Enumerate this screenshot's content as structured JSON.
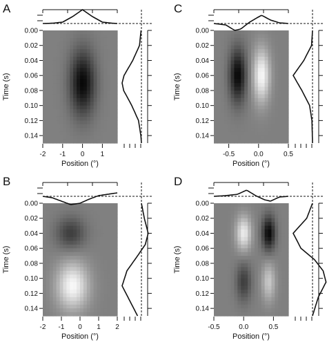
{
  "chart_data": [
    {
      "type": "heatmap",
      "panel_label": "A",
      "xlabel": "Position (°)",
      "ylabel": "Time (s)",
      "xlim": [
        -2,
        1.75
      ],
      "ylim": [
        0.15,
        0.0
      ],
      "x_ticks": [
        -2,
        -1,
        0,
        1
      ],
      "y_ticks": [
        0.0,
        0.02,
        0.04,
        0.06,
        0.08,
        0.1,
        0.12,
        0.14
      ],
      "x_tick_labels": [
        "-2",
        "-1",
        "0",
        "1"
      ],
      "y_tick_labels": [
        "0.00",
        "0.02",
        "0.04",
        "0.06",
        "0.08",
        "0.10",
        "0.12",
        "0.14"
      ],
      "fields": [
        {
          "x": 0.0,
          "t": 0.07,
          "sx": 0.45,
          "st": 0.03,
          "amp": -1.0
        }
      ],
      "spatial_profile": [
        [
          -2.0,
          0.0
        ],
        [
          -1.5,
          0.02
        ],
        [
          -1.0,
          0.1
        ],
        [
          -0.5,
          0.5
        ],
        [
          0.0,
          1.0
        ],
        [
          0.5,
          0.5
        ],
        [
          1.0,
          0.1
        ],
        [
          1.5,
          0.02
        ],
        [
          1.75,
          0.0
        ]
      ],
      "temporal_profile": [
        [
          0.0,
          0.02
        ],
        [
          0.02,
          0.1
        ],
        [
          0.04,
          0.45
        ],
        [
          0.06,
          0.9
        ],
        [
          0.07,
          1.0
        ],
        [
          0.08,
          0.92
        ],
        [
          0.1,
          0.5
        ],
        [
          0.12,
          0.15
        ],
        [
          0.14,
          0.03
        ],
        [
          0.15,
          0.0
        ]
      ]
    },
    {
      "type": "heatmap",
      "panel_label": "B",
      "xlabel": "Position (°)",
      "ylabel": "Time (s)",
      "xlim": [
        -2,
        2
      ],
      "ylim": [
        0.15,
        0.0
      ],
      "x_ticks": [
        -2,
        -1,
        0,
        1,
        2
      ],
      "y_ticks": [
        0.0,
        0.02,
        0.04,
        0.06,
        0.08,
        0.1,
        0.12,
        0.14
      ],
      "x_tick_labels": [
        "-2",
        "-1",
        "0",
        "1",
        "2"
      ],
      "y_tick_labels": [
        "0.00",
        "0.02",
        "0.04",
        "0.06",
        "0.08",
        "0.10",
        "0.12",
        "0.14"
      ],
      "fields": [
        {
          "x": -0.5,
          "t": 0.04,
          "sx": 0.55,
          "st": 0.015,
          "amp": -0.55
        },
        {
          "x": -0.4,
          "t": 0.11,
          "sx": 0.6,
          "st": 0.022,
          "amp": 1.0
        }
      ],
      "spatial_profile": [
        [
          -2.0,
          0.0
        ],
        [
          -1.5,
          -0.1
        ],
        [
          -1.0,
          -0.35
        ],
        [
          -0.5,
          -0.6
        ],
        [
          0.0,
          -0.5
        ],
        [
          0.5,
          -0.2
        ],
        [
          1.0,
          0.05
        ],
        [
          1.5,
          0.15
        ],
        [
          2.0,
          0.25
        ]
      ],
      "temporal_profile": [
        [
          0.0,
          0.0
        ],
        [
          0.02,
          -0.15
        ],
        [
          0.04,
          -0.35
        ],
        [
          0.055,
          -0.2
        ],
        [
          0.07,
          0.2
        ],
        [
          0.09,
          0.75
        ],
        [
          0.11,
          1.0
        ],
        [
          0.13,
          0.6
        ],
        [
          0.15,
          0.2
        ]
      ]
    },
    {
      "type": "heatmap",
      "panel_label": "C",
      "xlabel": "Position (°)",
      "ylabel": "Time (s)",
      "xlim": [
        -0.75,
        0.5
      ],
      "ylim": [
        0.15,
        0.0
      ],
      "x_ticks": [
        -0.5,
        0.0,
        0.5
      ],
      "y_ticks": [
        0.0,
        0.02,
        0.04,
        0.06,
        0.08,
        0.1,
        0.12,
        0.14
      ],
      "x_tick_labels": [
        "-0.5",
        "0.0",
        "0.5"
      ],
      "y_tick_labels": [
        "0.00",
        "0.02",
        "0.04",
        "0.06",
        "0.08",
        "0.10",
        "0.12",
        "0.14"
      ],
      "fields": [
        {
          "x": -0.35,
          "t": 0.06,
          "sx": 0.1,
          "st": 0.025,
          "amp": -1.0
        },
        {
          "x": 0.05,
          "t": 0.06,
          "sx": 0.1,
          "st": 0.025,
          "amp": 1.0
        }
      ],
      "spatial_profile": [
        [
          -0.75,
          0.0
        ],
        [
          -0.55,
          -0.1
        ],
        [
          -0.4,
          -0.5
        ],
        [
          -0.3,
          -0.4
        ],
        [
          -0.15,
          0.1
        ],
        [
          0.05,
          0.6
        ],
        [
          0.2,
          0.25
        ],
        [
          0.35,
          0.05
        ],
        [
          0.5,
          0.0
        ]
      ],
      "temporal_profile": [
        [
          0.0,
          0.0
        ],
        [
          0.02,
          0.05
        ],
        [
          0.04,
          0.45
        ],
        [
          0.06,
          1.0
        ],
        [
          0.08,
          0.55
        ],
        [
          0.1,
          0.15
        ],
        [
          0.12,
          0.03
        ],
        [
          0.15,
          0.0
        ]
      ]
    },
    {
      "type": "heatmap",
      "panel_label": "D",
      "xlabel": "Position (°)",
      "ylabel": "Time (s)",
      "xlim": [
        -0.5,
        0.75
      ],
      "ylim": [
        0.15,
        0.0
      ],
      "x_ticks": [
        -0.5,
        0.0,
        0.5
      ],
      "y_ticks": [
        0.0,
        0.02,
        0.04,
        0.06,
        0.08,
        0.1,
        0.12,
        0.14
      ],
      "x_tick_labels": [
        "-0.5",
        "0.0",
        "0.5"
      ],
      "y_tick_labels": [
        "0.00",
        "0.02",
        "0.04",
        "0.06",
        "0.08",
        "0.10",
        "0.12",
        "0.14"
      ],
      "fields": [
        {
          "x": 0.0,
          "t": 0.04,
          "sx": 0.09,
          "st": 0.016,
          "amp": 0.9
        },
        {
          "x": 0.42,
          "t": 0.04,
          "sx": 0.08,
          "st": 0.016,
          "amp": -1.0
        },
        {
          "x": 0.0,
          "t": 0.105,
          "sx": 0.09,
          "st": 0.018,
          "amp": -0.55
        },
        {
          "x": 0.42,
          "t": 0.105,
          "sx": 0.08,
          "st": 0.018,
          "amp": 0.6
        }
      ],
      "spatial_profile": [
        [
          -0.5,
          0.0
        ],
        [
          -0.3,
          0.05
        ],
        [
          -0.1,
          0.15
        ],
        [
          0.05,
          0.45
        ],
        [
          0.2,
          0.05
        ],
        [
          0.35,
          -0.25
        ],
        [
          0.45,
          -0.35
        ],
        [
          0.6,
          -0.05
        ],
        [
          0.75,
          0.0
        ]
      ],
      "temporal_profile": [
        [
          0.0,
          0.0
        ],
        [
          0.02,
          0.3
        ],
        [
          0.04,
          1.0
        ],
        [
          0.06,
          0.6
        ],
        [
          0.075,
          -0.1
        ],
        [
          0.09,
          -0.55
        ],
        [
          0.105,
          -0.7
        ],
        [
          0.125,
          -0.3
        ],
        [
          0.15,
          0.0
        ]
      ]
    }
  ]
}
